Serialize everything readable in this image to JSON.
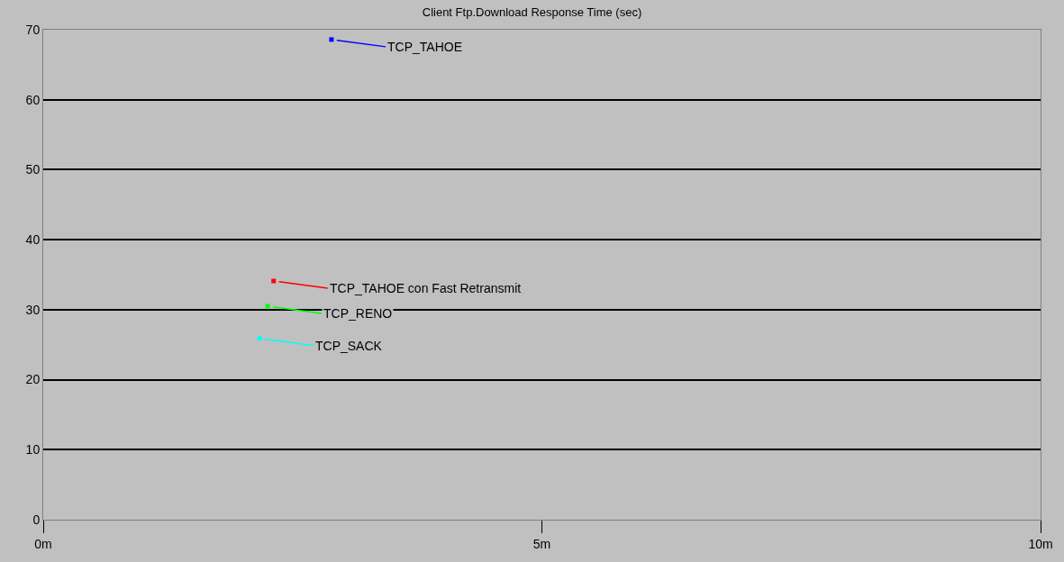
{
  "chart_data": {
    "type": "scatter",
    "title": "Client Ftp.Download Response Time (sec)",
    "marker": "square",
    "grid": "y",
    "legend": "top left",
    "xlim": [
      0,
      10
    ],
    "xticks": [
      {
        "value": 0,
        "label": "0m"
      },
      {
        "value": 5,
        "label": "5m"
      },
      {
        "value": 10,
        "label": "10m"
      }
    ],
    "ylim": [
      0,
      70
    ],
    "yticks": [
      0,
      10,
      20,
      30,
      40,
      50,
      60,
      70
    ],
    "series": [
      {
        "name": "TCP_TAHOE",
        "color": "#0000ff",
        "x": [
          2.89
        ],
        "values": [
          68.6
        ]
      },
      {
        "name": "TCP_TAHOE con Fast Retransmit",
        "color": "#ff0000",
        "x": [
          2.31
        ],
        "values": [
          34.1
        ]
      },
      {
        "name": "TCP_RENO",
        "color": "#00ff00",
        "x": [
          2.25
        ],
        "values": [
          30.5
        ]
      },
      {
        "name": "TCP_SACK",
        "color": "#00ffff",
        "x": [
          2.17
        ],
        "values": [
          25.9
        ]
      }
    ]
  }
}
